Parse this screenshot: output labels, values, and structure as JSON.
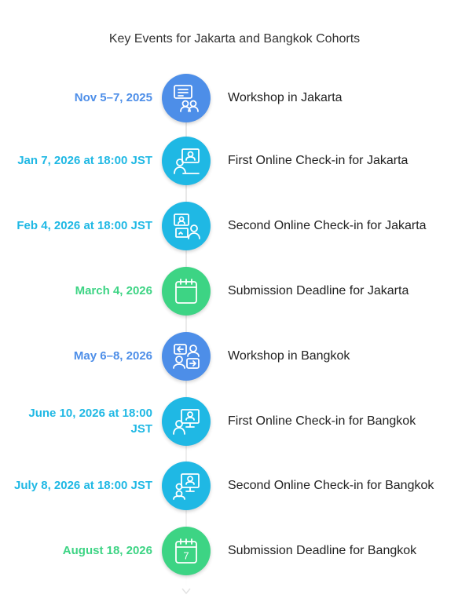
{
  "title": "Key Events for Jakarta and Bangkok Cohorts",
  "colors": {
    "blue": "#4d8ee8",
    "cyan": "#1fb8e4",
    "green": "#3dd484",
    "spine": "#e6e6e6"
  },
  "events": [
    {
      "date": "Nov 5–7, 2025",
      "label": "Workshop in Jakarta",
      "icon": "workshop-chat-icon",
      "color": "blue"
    },
    {
      "date": "Jan 7, 2026 at 18:00 JST",
      "label": "First Online Check-in for Jakarta",
      "icon": "video-call-icon",
      "color": "cyan"
    },
    {
      "date": "Feb 4, 2026 at 18:00 JST",
      "label": "Second Online Check-in for Jakarta",
      "icon": "online-meeting-icon",
      "color": "cyan"
    },
    {
      "date": "March 4, 2026",
      "label": "Submission Deadline for Jakarta",
      "icon": "calendar-icon",
      "color": "green"
    },
    {
      "date": "May 6–8, 2026",
      "label": "Workshop in Bangkok",
      "icon": "exchange-people-icon",
      "color": "blue"
    },
    {
      "date": "June 10, 2026 at 18:00 JST",
      "label": "First Online Check-in for Bangkok",
      "icon": "presenter-monitor-icon",
      "color": "cyan"
    },
    {
      "date": "July 8, 2026 at 18:00 JST",
      "label": "Second Online Check-in for Bangkok",
      "icon": "group-monitor-icon",
      "color": "cyan"
    },
    {
      "date": "August 18, 2026",
      "label": "Submission Deadline for Bangkok",
      "icon": "calendar-icon",
      "color": "green",
      "icon_text": "7"
    }
  ]
}
